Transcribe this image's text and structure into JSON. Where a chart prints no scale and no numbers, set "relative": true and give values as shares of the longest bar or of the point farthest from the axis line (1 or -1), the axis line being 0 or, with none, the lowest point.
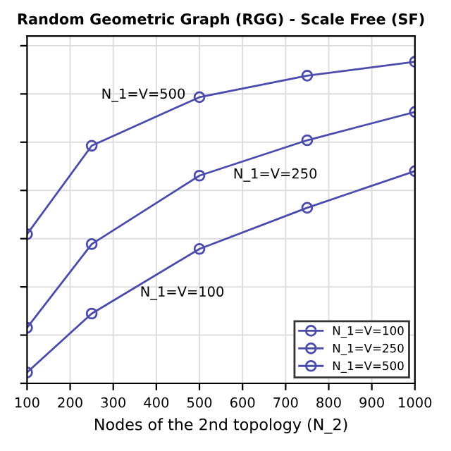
{
  "chart_data": {
    "type": "line",
    "title": "Random Geometric Graph (RGG) - Scale Free (SF)",
    "xlabel": "Nodes of the 2nd topology (N_2)",
    "x": [
      100,
      250,
      500,
      750,
      1000
    ],
    "relative": true,
    "xlim": [
      100,
      1000
    ],
    "xticks": [
      100,
      200,
      300,
      400,
      500,
      600,
      700,
      800,
      900,
      1000
    ],
    "series": [
      {
        "name": "N_1=V=100",
        "color": "#4b4bab",
        "values": [
          0.034,
          0.217,
          0.418,
          0.546,
          0.66
        ]
      },
      {
        "name": "N_1=V=250",
        "color": "#4b4bab",
        "values": [
          0.173,
          0.433,
          0.646,
          0.756,
          0.844
        ]
      },
      {
        "name": "N_1=V=500",
        "color": "#4b4bab",
        "values": [
          0.464,
          0.739,
          0.89,
          0.957,
          1
        ]
      }
    ],
    "annotations": [
      "N_1=V=500",
      "N_1=V=250",
      "N_1=V=100"
    ],
    "marker": "circle",
    "line_style": "solid",
    "grid": true,
    "legend": "lower right",
    "tick_labels": "x"
  }
}
